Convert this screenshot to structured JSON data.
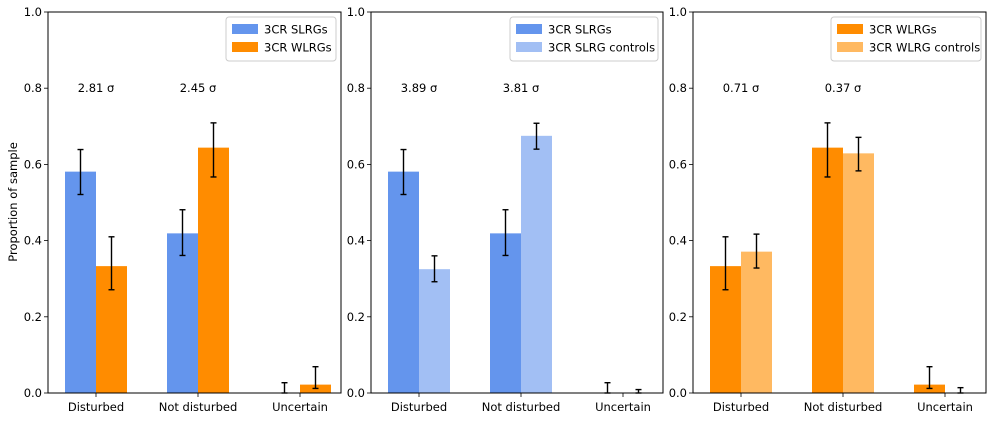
{
  "figure": {
    "ylabel": "Proportion of sample"
  },
  "chart_data": [
    {
      "type": "bar",
      "title": "",
      "xlabel": "",
      "ylabel": "Proportion of sample",
      "ylim": [
        0,
        1.0
      ],
      "yticks": [
        "0.0",
        "0.2",
        "0.4",
        "0.6",
        "0.8",
        "1.0"
      ],
      "categories": [
        "Disturbed",
        "Not disturbed",
        "Uncertain"
      ],
      "series": [
        {
          "name": "3CR SLRGs",
          "color": "#6495ED",
          "values": [
            0.581,
            0.419,
            0.0
          ],
          "err_low": [
            0.06,
            0.058,
            0.0
          ],
          "err_high": [
            0.058,
            0.062,
            0.027
          ]
        },
        {
          "name": "3CR WLRGs",
          "color": "#FF8C00",
          "values": [
            0.333,
            0.644,
            0.022
          ],
          "err_low": [
            0.062,
            0.077,
            0.01
          ],
          "err_high": [
            0.077,
            0.065,
            0.047
          ]
        }
      ],
      "annotations": [
        "2.81 σ",
        "2.45 σ"
      ],
      "legend": "top-right"
    },
    {
      "type": "bar",
      "title": "",
      "xlabel": "",
      "ylabel": "",
      "ylim": [
        0,
        1.0
      ],
      "yticks": [
        "0.0",
        "0.2",
        "0.4",
        "0.6",
        "0.8",
        "1.0"
      ],
      "categories": [
        "Disturbed",
        "Not disturbed",
        "Uncertain"
      ],
      "series": [
        {
          "name": "3CR SLRGs",
          "color": "#6495ED",
          "values": [
            0.581,
            0.419,
            0.0
          ],
          "err_low": [
            0.06,
            0.058,
            0.0
          ],
          "err_high": [
            0.058,
            0.062,
            0.027
          ]
        },
        {
          "name": "3CR SLRG controls",
          "color": "#A2BFF4",
          "values": [
            0.325,
            0.675,
            0.0
          ],
          "err_low": [
            0.033,
            0.035,
            0.0
          ],
          "err_high": [
            0.035,
            0.033,
            0.009
          ]
        }
      ],
      "annotations": [
        "3.89 σ",
        "3.81 σ"
      ],
      "legend": "top-right"
    },
    {
      "type": "bar",
      "title": "",
      "xlabel": "",
      "ylabel": "",
      "ylim": [
        0,
        1.0
      ],
      "yticks": [
        "0.0",
        "0.2",
        "0.4",
        "0.6",
        "0.8",
        "1.0"
      ],
      "categories": [
        "Disturbed",
        "Not disturbed",
        "Uncertain"
      ],
      "series": [
        {
          "name": "3CR WLRGs",
          "color": "#FF8C00",
          "values": [
            0.333,
            0.644,
            0.022
          ],
          "err_low": [
            0.062,
            0.077,
            0.01
          ],
          "err_high": [
            0.077,
            0.065,
            0.047
          ]
        },
        {
          "name": "3CR WLRG controls",
          "color": "#FFB961",
          "values": [
            0.371,
            0.629,
            0.0
          ],
          "err_low": [
            0.043,
            0.046,
            0.0
          ],
          "err_high": [
            0.046,
            0.042,
            0.014
          ]
        }
      ],
      "annotations": [
        "0.71 σ",
        "0.37 σ"
      ],
      "legend": "top-right"
    }
  ]
}
